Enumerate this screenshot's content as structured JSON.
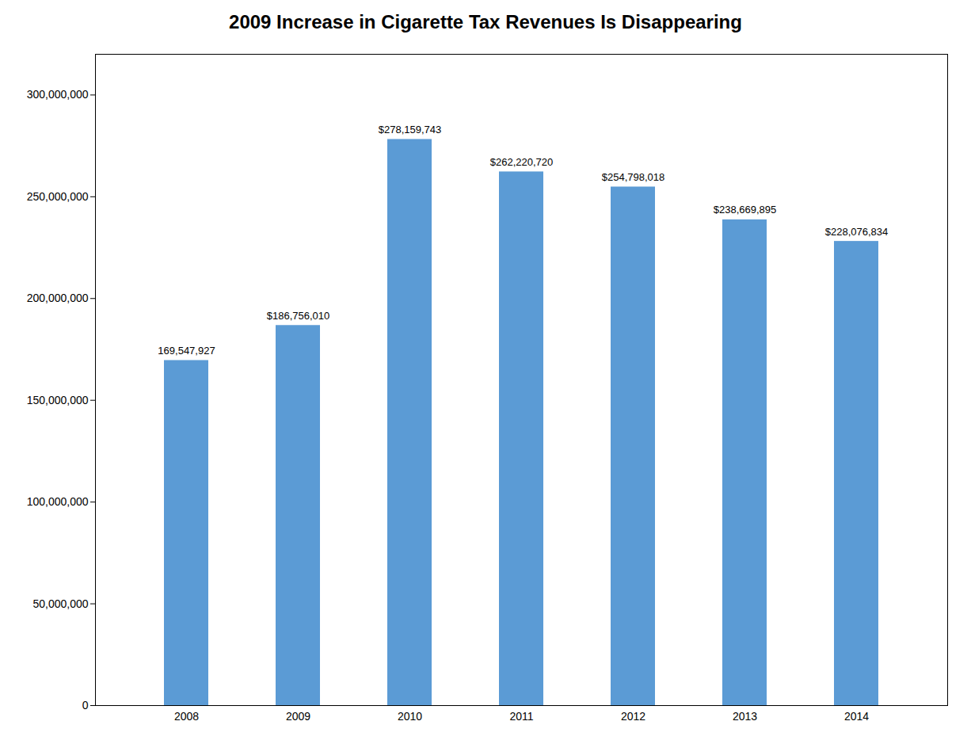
{
  "chart_data": {
    "type": "bar",
    "title": "2009 Increase in Cigarette Tax Revenues Is Disappearing",
    "categories": [
      "2008",
      "2009",
      "2010",
      "2011",
      "2012",
      "2013",
      "2014"
    ],
    "values": [
      169547927,
      186756010,
      278159743,
      262220720,
      254798018,
      238669895,
      228076834
    ],
    "value_labels": [
      "169,547,927",
      "$186,756,010",
      "$278,159,743",
      "$262,220,720",
      "$254,798,018",
      "$238,669,895",
      "$228,076,834"
    ],
    "data_labels": true,
    "color": "#5B9BD5",
    "ylim": [
      0,
      320000000
    ],
    "yticks": [
      0,
      {
        "value": 50000000,
        "label": "50,000,000"
      },
      {
        "value": 100000000,
        "label": "100,000,000"
      },
      {
        "value": 150000000,
        "label": "150,000,000"
      },
      {
        "value": 200000000,
        "label": "200,000,000"
      },
      {
        "value": 250000000,
        "label": "250,000,000"
      },
      {
        "value": 300000000,
        "label": "300,000,000"
      }
    ],
    "grid": false
  }
}
